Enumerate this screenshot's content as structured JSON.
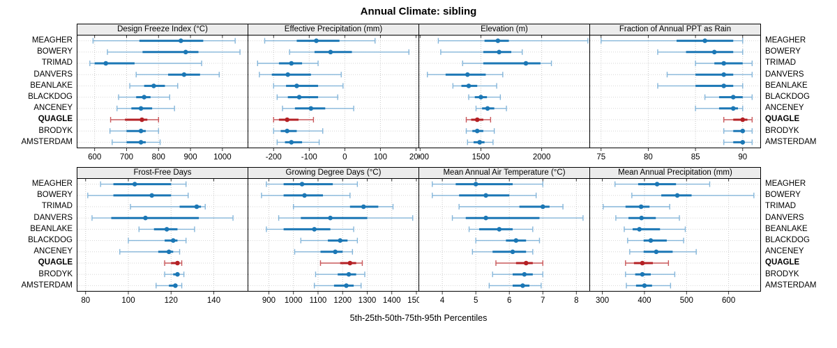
{
  "chart_data": {
    "type": "dotplot-percentiles",
    "suptitle": "Annual Climate: sibling",
    "xlabel": "5th-25th-50th-75th-95th Percentiles",
    "percentile_labels": [
      "5th",
      "25th",
      "50th",
      "75th",
      "95th"
    ],
    "stations": [
      "MEAGHER",
      "BOWERY",
      "TRIMAD",
      "DANVERS",
      "BEANLAKE",
      "BLACKDOG",
      "ANCENEY",
      "QUAGLE",
      "BRODYK",
      "AMSTERDAM"
    ],
    "highlight_station": "QUAGLE",
    "colors": {
      "blue_main": "#1b77b5",
      "blue_light": "#85b6da",
      "red_main": "#b42024",
      "red_light": "#c9595c",
      "grid": "#c9c9c9",
      "row_grid": "#d6d6d6",
      "header_bg": "#ececec",
      "border": "#000000"
    },
    "panels": [
      {
        "title": "Design Freeze Index (°C)",
        "xlim": [
          545,
          1080
        ],
        "ticks": [
          600,
          700,
          800,
          900,
          1000
        ],
        "rows": [
          [
            595,
            740,
            870,
            940,
            1040
          ],
          [
            640,
            750,
            885,
            925,
            1055
          ],
          [
            585,
            600,
            635,
            725,
            935
          ],
          [
            730,
            830,
            880,
            930,
            990
          ],
          [
            710,
            755,
            785,
            820,
            860
          ],
          [
            675,
            730,
            755,
            775,
            835
          ],
          [
            670,
            715,
            745,
            780,
            850
          ],
          [
            650,
            695,
            748,
            765,
            800
          ],
          [
            648,
            700,
            745,
            760,
            800
          ],
          [
            655,
            700,
            745,
            760,
            805
          ]
        ]
      },
      {
        "title": "Effective Precipitation (mm)",
        "xlim": [
          -272,
          208
        ],
        "ticks": [
          -200,
          -100,
          0,
          100,
          200
        ],
        "rows": [
          [
            -225,
            -135,
            -80,
            -15,
            85
          ],
          [
            -155,
            -85,
            -40,
            20,
            180
          ],
          [
            -245,
            -185,
            -150,
            -120,
            -75
          ],
          [
            -240,
            -205,
            -160,
            -95,
            -10
          ],
          [
            -200,
            -165,
            -135,
            -75,
            -5
          ],
          [
            -190,
            -160,
            -128,
            -75,
            -20
          ],
          [
            -175,
            -140,
            -95,
            -55,
            25
          ],
          [
            -200,
            -185,
            -162,
            -130,
            -88
          ],
          [
            -200,
            -180,
            -162,
            -135,
            -62
          ],
          [
            -190,
            -168,
            -150,
            -120,
            -72
          ]
        ]
      },
      {
        "title": "Elevation (m)",
        "xlim": [
          990,
          2395
        ],
        "ticks": [
          1000,
          1500,
          2000
        ],
        "rows": [
          [
            1150,
            1530,
            1640,
            1730,
            2380
          ],
          [
            1170,
            1520,
            1650,
            1750,
            1840
          ],
          [
            1350,
            1520,
            1870,
            1990,
            2080
          ],
          [
            1060,
            1210,
            1390,
            1540,
            1680
          ],
          [
            1270,
            1340,
            1400,
            1470,
            1630
          ],
          [
            1400,
            1450,
            1500,
            1550,
            1660
          ],
          [
            1460,
            1510,
            1555,
            1610,
            1710
          ],
          [
            1380,
            1420,
            1470,
            1520,
            1580
          ],
          [
            1380,
            1430,
            1470,
            1520,
            1610
          ],
          [
            1390,
            1440,
            1490,
            1530,
            1600
          ]
        ]
      },
      {
        "title": "Fraction of Annual PPT as Rain",
        "xlim": [
          73.8,
          91.9
        ],
        "ticks": [
          75,
          80,
          85,
          90
        ],
        "rows": [
          [
            75,
            83,
            86,
            89,
            90
          ],
          [
            81,
            84,
            87,
            89,
            90
          ],
          [
            85,
            87,
            88,
            90,
            91
          ],
          [
            82,
            85,
            88,
            89,
            91
          ],
          [
            81,
            85,
            88,
            89,
            90
          ],
          [
            86,
            87.5,
            89,
            90,
            91
          ],
          [
            85,
            87.5,
            89,
            89.5,
            90
          ],
          [
            88,
            89,
            90,
            90.5,
            91
          ],
          [
            88,
            89,
            90,
            90.2,
            91
          ],
          [
            88,
            89,
            90,
            90.2,
            91
          ]
        ]
      },
      {
        "title": "Frost-Free Days",
        "xlim": [
          76,
          156
        ],
        "ticks": [
          80,
          100,
          120,
          140
        ],
        "rows": [
          [
            87,
            93,
            103,
            120,
            127
          ],
          [
            81,
            93,
            111,
            120,
            128
          ],
          [
            101,
            124,
            132,
            134,
            136
          ],
          [
            83,
            92,
            108,
            133,
            149
          ],
          [
            105,
            112,
            118,
            123,
            131
          ],
          [
            100,
            117,
            121,
            123,
            127
          ],
          [
            96,
            114,
            119,
            121,
            124
          ],
          [
            117,
            120,
            123,
            124,
            125
          ],
          [
            117,
            121,
            123,
            124,
            126
          ],
          [
            113,
            119,
            122,
            123,
            125
          ]
        ]
      },
      {
        "title": "Growing Degree Days (°C)",
        "xlim": [
          815,
          1510
        ],
        "ticks": [
          900,
          1000,
          1100,
          1200,
          1300,
          1400,
          1500
        ],
        "rows": [
          [
            890,
            960,
            1035,
            1160,
            1260
          ],
          [
            870,
            960,
            1045,
            1120,
            1230
          ],
          [
            1000,
            1230,
            1285,
            1345,
            1405
          ],
          [
            940,
            1030,
            1150,
            1300,
            1485
          ],
          [
            890,
            960,
            1085,
            1150,
            1245
          ],
          [
            1030,
            1140,
            1190,
            1220,
            1260
          ],
          [
            1005,
            1110,
            1170,
            1200,
            1240
          ],
          [
            1110,
            1190,
            1230,
            1255,
            1280
          ],
          [
            1090,
            1180,
            1225,
            1255,
            1290
          ],
          [
            1085,
            1165,
            1215,
            1245,
            1275
          ]
        ]
      },
      {
        "title": "Mean Annual Air Temperature (°C)",
        "xlim": [
          3.3,
          8.4
        ],
        "ticks": [
          4,
          5,
          6,
          7,
          8
        ],
        "rows": [
          [
            3.7,
            4.4,
            5.0,
            6.1,
            7.0
          ],
          [
            3.7,
            4.5,
            5.3,
            6.0,
            6.8
          ],
          [
            4.5,
            6.3,
            7.0,
            7.2,
            7.6
          ],
          [
            4.3,
            4.7,
            5.3,
            6.9,
            8.2
          ],
          [
            4.8,
            5.1,
            5.7,
            6.1,
            6.7
          ],
          [
            5.0,
            5.9,
            6.2,
            6.5,
            6.9
          ],
          [
            4.9,
            5.5,
            6.1,
            6.5,
            6.7
          ],
          [
            5.6,
            6.2,
            6.5,
            6.7,
            7.0
          ],
          [
            5.5,
            6.1,
            6.45,
            6.7,
            7.0
          ],
          [
            5.4,
            6.1,
            6.4,
            6.6,
            6.95
          ]
        ]
      },
      {
        "title": "Mean Annual Precipitation (mm)",
        "xlim": [
          270,
          676
        ],
        "ticks": [
          300,
          400,
          500,
          600
        ],
        "rows": [
          [
            330,
            385,
            430,
            475,
            555
          ],
          [
            370,
            440,
            478,
            512,
            660
          ],
          [
            302,
            355,
            392,
            412,
            460
          ],
          [
            332,
            362,
            393,
            427,
            483
          ],
          [
            352,
            372,
            388,
            437,
            497
          ],
          [
            360,
            398,
            415,
            453,
            493
          ],
          [
            365,
            398,
            428,
            467,
            523
          ],
          [
            355,
            375,
            395,
            420,
            457
          ],
          [
            355,
            378,
            395,
            415,
            472
          ],
          [
            357,
            380,
            400,
            418,
            462
          ]
        ]
      }
    ]
  }
}
